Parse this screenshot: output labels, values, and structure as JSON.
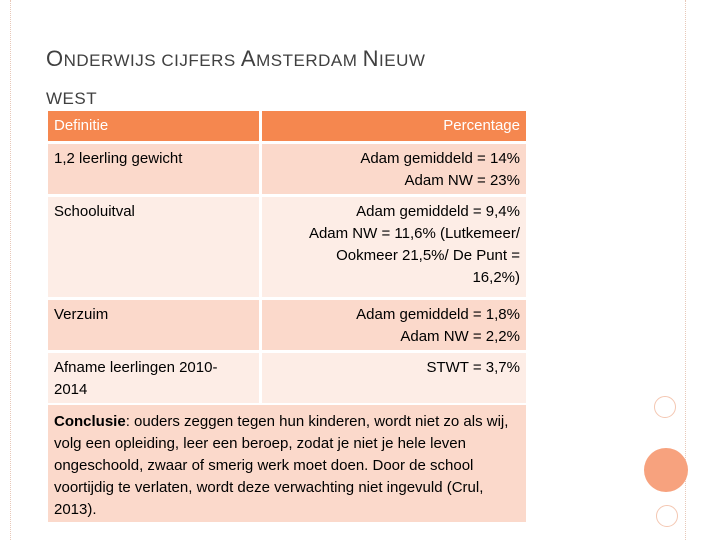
{
  "title": {
    "word1_cap": "O",
    "word1_rest": "NDERWIJS",
    "word2": "CIJFERS",
    "word3_cap": "A",
    "word3_rest": "MSTERDAM",
    "word4_cap": "N",
    "word4_rest": "IEUW",
    "word5": "WEST"
  },
  "table": {
    "headers": [
      "Definitie",
      "Percentage"
    ],
    "rows": [
      {
        "label": "1,2 leerling gewicht",
        "value_lines": [
          "Adam gemiddeld = 14%",
          "Adam NW = 23%"
        ]
      },
      {
        "label": "Schooluitval",
        "value_lines": [
          "Adam gemiddeld = 9,4%",
          "Adam NW = 11,6% (Lutkemeer/",
          "Ookmeer 21,5%/ De Punt =",
          "16,2%)"
        ]
      },
      {
        "label": "Verzuim",
        "value_lines": [
          "Adam gemiddeld = 1,8%",
          "Adam NW = 2,2%"
        ]
      },
      {
        "label_lines": [
          "Afname leerlingen 2010-",
          "2014"
        ],
        "value_lines": [
          "STWT = 3,7%"
        ]
      }
    ]
  },
  "conclusion": {
    "label": "Conclusie",
    "text": ": ouders zeggen tegen hun kinderen, wordt niet zo als wij, volg een opleiding, leer een beroep, zodat je niet je hele leven ongeschoold, zwaar of smerig werk moet doen. Door de school voortijdig te verlaten, wordt deze verwachting niet ingevuld (Crul, 2013)."
  },
  "colors": {
    "header_bg": "#f5874f",
    "row_dark": "#fbd9cb",
    "row_light": "#fdede6",
    "accent_circle": "#f7a27e"
  }
}
